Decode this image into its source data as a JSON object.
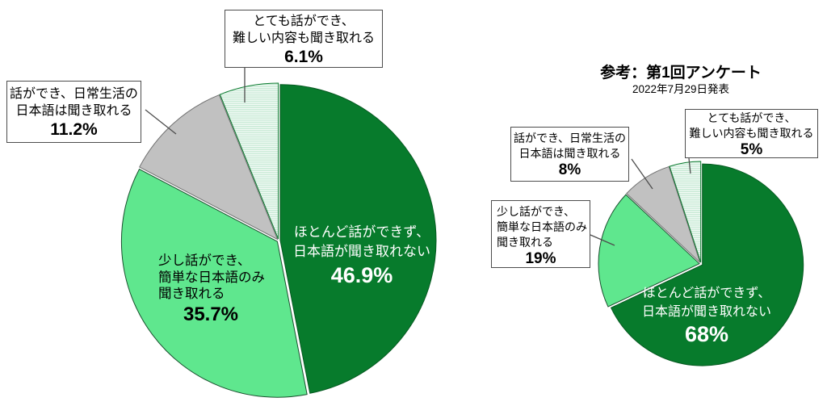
{
  "page": {
    "background": "#ffffff"
  },
  "colors": {
    "dark_green": "#077b2c",
    "light_green": "#5fe78e",
    "gray": "#c1c1c1",
    "stripe_green": "#c6e9d4",
    "stripe_white": "#f4fbf7",
    "box_border": "#4d4d4d",
    "leader": "#4d4d4d"
  },
  "chart_data": [
    {
      "type": "pie",
      "title": "",
      "start_angle": "top",
      "direction": "clockwise",
      "categories": [
        "ほとんど話ができず、日本語が聞き取れない",
        "少し話ができ、簡単な日本語のみ聞き取れる",
        "話ができ、日常生活の日本語は聞き取れる",
        "とても話ができ、難しい内容も聞き取れる"
      ],
      "values": [
        46.9,
        35.7,
        11.2,
        6.1
      ],
      "slices": [
        {
          "label": "ほとんど話ができず、日本語が聞き取れない",
          "value": 46.9,
          "value_label": "46.9%",
          "color": "#077b2c",
          "fill": "solid",
          "label_lines": [
            "ほとんど話ができず、",
            "日本語が聞き取れない"
          ],
          "label_style": "inside-white"
        },
        {
          "label": "少し話ができ、簡単な日本語のみ聞き取れる",
          "value": 35.7,
          "value_label": "35.7%",
          "color": "#5fe78e",
          "fill": "solid",
          "label_lines": [
            "少し話ができ、",
            "簡単な日本語のみ",
            "聞き取れる"
          ],
          "label_style": "inside-black"
        },
        {
          "label": "話ができ、日常生活の日本語は聞き取れる",
          "value": 11.2,
          "value_label": "11.2%",
          "color": "#c1c1c1",
          "fill": "solid",
          "label_lines": [
            "話ができ、日常生活の",
            "日本語は聞き取れる"
          ],
          "label_style": "callout"
        },
        {
          "label": "とても話ができ、難しい内容も聞き取れる",
          "value": 6.1,
          "value_label": "6.1%",
          "color": "#c6e9d4",
          "fill": "stripes",
          "label_lines": [
            "とても話ができ、",
            "難しい内容も聞き取れる"
          ],
          "label_style": "callout"
        }
      ]
    },
    {
      "type": "pie",
      "title": "参考：第1回アンケート",
      "subtitle": "2022年7月29日発表",
      "start_angle": "top",
      "direction": "clockwise",
      "categories": [
        "ほとんど話ができず、日本語が聞き取れない",
        "少し話ができ、簡単な日本語のみ聞き取れる",
        "話ができ、日常生活の日本語は聞き取れる",
        "とても話ができ、難しい内容も聞き取れる"
      ],
      "values": [
        68,
        19,
        8,
        5
      ],
      "slices": [
        {
          "label": "ほとんど話ができず、日本語が聞き取れない",
          "value": 68,
          "value_label": "68%",
          "color": "#077b2c",
          "fill": "solid",
          "label_lines": [
            "ほとんど話ができず、",
            "日本語が聞き取れない"
          ],
          "label_style": "inside-white"
        },
        {
          "label": "少し話ができ、簡単な日本語のみ聞き取れる",
          "value": 19,
          "value_label": "19%",
          "color": "#5fe78e",
          "fill": "solid",
          "label_lines": [
            "少し話ができ、",
            "簡単な日本語のみ",
            "聞き取れる"
          ],
          "label_style": "callout"
        },
        {
          "label": "話ができ、日常生活の日本語は聞き取れる",
          "value": 8,
          "value_label": "8%",
          "color": "#c1c1c1",
          "fill": "solid",
          "label_lines": [
            "話ができ、日常生活の",
            "日本語は聞き取れる"
          ],
          "label_style": "callout"
        },
        {
          "label": "とても話ができ、難しい内容も聞き取れる",
          "value": 5,
          "value_label": "5%",
          "color": "#c6e9d4",
          "fill": "stripes",
          "label_lines": [
            "とても話ができ、",
            "難しい内容も聞き取れる"
          ],
          "label_style": "callout"
        }
      ]
    }
  ]
}
